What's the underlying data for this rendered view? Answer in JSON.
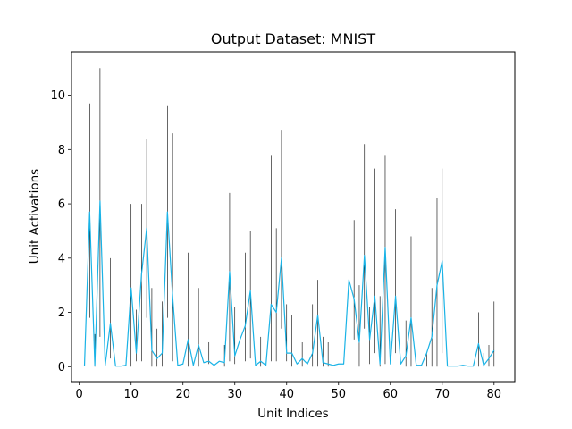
{
  "chart_data": {
    "type": "line",
    "title": "Output Dataset: MNIST",
    "xlabel": "Unit Indices",
    "ylabel": "Unit Activations",
    "xlim": [
      -1.5,
      84.0
    ],
    "ylim": [
      -0.55,
      11.6
    ],
    "xticks": [
      0,
      10,
      20,
      30,
      40,
      50,
      60,
      70,
      80
    ],
    "yticks": [
      0,
      2,
      4,
      6,
      8,
      10
    ],
    "grid": false,
    "legend": "none",
    "series": [
      {
        "role": "activation-range-bars",
        "color": "#000000",
        "x": [
          2,
          3,
          4,
          5,
          6,
          10,
          11,
          12,
          13,
          14,
          15,
          16,
          17,
          18,
          21,
          23,
          25,
          28,
          29,
          30,
          31,
          32,
          33,
          35,
          37,
          38,
          39,
          40,
          41,
          43,
          45,
          46,
          47,
          48,
          52,
          53,
          54,
          55,
          56,
          57,
          58,
          59,
          61,
          63,
          64,
          67,
          68,
          69,
          70,
          77,
          78,
          79,
          80
        ],
        "low": [
          1.8,
          0,
          1.1,
          0,
          0.3,
          0,
          0.2,
          0.2,
          1.8,
          0,
          0,
          0,
          1.8,
          0.2,
          0,
          0,
          0.1,
          0,
          0.2,
          0.1,
          0.2,
          0.2,
          0.3,
          0,
          0.2,
          0.2,
          1.4,
          0.2,
          0,
          0,
          0,
          0,
          0,
          0,
          1.8,
          1.0,
          0,
          1.4,
          0.1,
          0.5,
          0,
          0.1,
          0.5,
          0,
          0,
          0,
          0,
          0,
          0.5,
          0,
          0,
          0,
          0
        ],
        "high": [
          9.7,
          1.2,
          11.0,
          0.1,
          4.0,
          6.0,
          2.1,
          6.0,
          8.4,
          2.9,
          1.4,
          2.4,
          9.6,
          8.6,
          4.2,
          2.9,
          0.9,
          0.8,
          6.4,
          2.2,
          2.8,
          4.2,
          5.0,
          1.1,
          7.8,
          5.1,
          8.7,
          2.3,
          1.9,
          0.9,
          2.3,
          3.2,
          1.1,
          0.9,
          6.7,
          5.4,
          3.0,
          8.2,
          2.2,
          7.3,
          2.6,
          7.8,
          5.8,
          1.7,
          4.8,
          0.5,
          2.9,
          6.2,
          7.3,
          2.0,
          0.5,
          0.8,
          2.4
        ]
      },
      {
        "role": "mean-activation-line",
        "color": "#1ab3e6",
        "x": [
          1,
          2,
          3,
          4,
          5,
          6,
          7,
          8,
          9,
          10,
          11,
          12,
          13,
          14,
          15,
          16,
          17,
          18,
          19,
          20,
          21,
          22,
          23,
          24,
          25,
          26,
          27,
          28,
          29,
          30,
          31,
          32,
          33,
          34,
          35,
          36,
          37,
          38,
          39,
          40,
          41,
          42,
          43,
          44,
          45,
          46,
          47,
          48,
          49,
          50,
          51,
          52,
          53,
          54,
          55,
          56,
          57,
          58,
          59,
          60,
          61,
          62,
          63,
          64,
          65,
          66,
          67,
          68,
          69,
          70,
          71,
          72,
          73,
          74,
          75,
          76,
          77,
          78,
          79,
          80
        ],
        "values": [
          0.02,
          5.7,
          0.05,
          6.1,
          0.05,
          1.6,
          0.02,
          0.02,
          0.05,
          2.9,
          0.5,
          3.4,
          5.1,
          0.6,
          0.3,
          0.5,
          5.7,
          2.6,
          0.05,
          0.1,
          1.0,
          0.05,
          0.8,
          0.15,
          0.2,
          0.05,
          0.2,
          0.15,
          3.5,
          0.4,
          1.0,
          1.5,
          2.8,
          0.05,
          0.2,
          0.05,
          2.3,
          2.0,
          4.0,
          0.5,
          0.5,
          0.1,
          0.3,
          0.1,
          0.5,
          1.9,
          0.15,
          0.1,
          0.05,
          0.1,
          0.1,
          3.2,
          2.5,
          0.9,
          4.1,
          1.0,
          2.6,
          0.1,
          4.4,
          0.1,
          2.6,
          0.1,
          0.4,
          1.8,
          0.05,
          0.05,
          0.5,
          1.1,
          3.0,
          3.9,
          0.02,
          0.02,
          0.02,
          0.05,
          0.02,
          0.02,
          0.85,
          0.05,
          0.3,
          0.6
        ]
      }
    ]
  }
}
